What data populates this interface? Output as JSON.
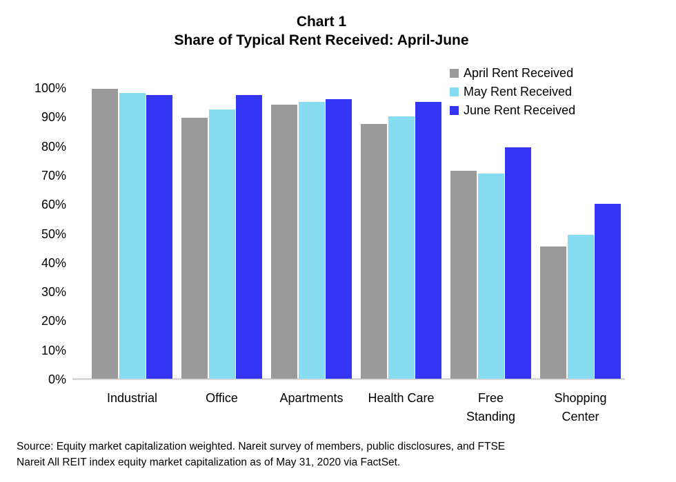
{
  "title": {
    "line1": "Chart 1",
    "line2": "Share of Typical Rent Received: April-June"
  },
  "source": {
    "line1": "Source: Equity market capitalization weighted. Nareit survey of members, public disclosures, and FTSE",
    "line2": "Nareit All REIT index equity market capitalization as of May 31, 2020 via FactSet."
  },
  "chart_data": {
    "type": "bar",
    "title": "Chart 1",
    "subtitle": "Share of Typical Rent Received: April-June",
    "categories": [
      "Industrial",
      "Office",
      "Apartments",
      "Health Care",
      "Free Standing",
      "Shopping Center"
    ],
    "category_label_lines": [
      [
        "Industrial"
      ],
      [
        "Office"
      ],
      [
        "Apartments"
      ],
      [
        "Health Care"
      ],
      [
        "Free",
        "Standing"
      ],
      [
        "Shopping",
        "Center"
      ]
    ],
    "series": [
      {
        "name": "April Rent Received",
        "color": "#9A9A9A",
        "values": [
          99.5,
          89.5,
          94,
          87.5,
          71.5,
          45.5
        ]
      },
      {
        "name": "May Rent Received",
        "color": "#87DCF2",
        "values": [
          98,
          92.5,
          95,
          90,
          70.5,
          49.5
        ]
      },
      {
        "name": "June Rent Received",
        "color": "#3535F5",
        "values": [
          97.5,
          97.5,
          96,
          95,
          79.5,
          60
        ]
      }
    ],
    "xlabel": "",
    "ylabel": "",
    "ylim": [
      0,
      100
    ],
    "ytick_labels": [
      "100%",
      "90%",
      "80%",
      "70%",
      "60%",
      "50%",
      "40%",
      "30%",
      "20%",
      "10%",
      "0%"
    ],
    "grid": false,
    "legend_position": "top-right",
    "axis_line_color": "#D9D9D9",
    "background": "#FFFFFF"
  }
}
